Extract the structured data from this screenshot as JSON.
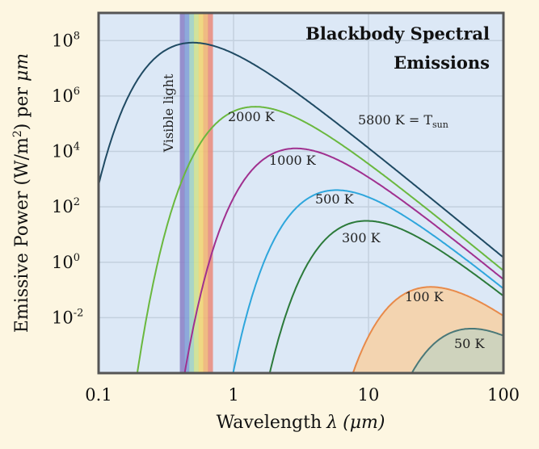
{
  "chart_data": {
    "type": "line",
    "title_line1": "Blackbody Spectral",
    "title_line2": "Emissions",
    "xlabel": "Wavelength",
    "xlabel_symbol": "λ",
    "xlabel_unit": "(μm)",
    "ylabel_part1": "Emissive Power (W/m",
    "ylabel_sup": "2",
    "ylabel_part2": ") per ",
    "ylabel_unit": "μm",
    "x_scale": "log",
    "y_scale": "log",
    "xlim": [
      0.1,
      100
    ],
    "ylim": [
      0.0001,
      1000000000
    ],
    "x_ticks": [
      {
        "value": 0.1,
        "label": "0.1"
      },
      {
        "value": 1,
        "label": "1"
      },
      {
        "value": 10,
        "label": "10"
      },
      {
        "value": 100,
        "label": "100"
      }
    ],
    "y_ticks": [
      {
        "value": 100000000,
        "base": "10",
        "exp": "8"
      },
      {
        "value": 1000000,
        "base": "10",
        "exp": "6"
      },
      {
        "value": 10000,
        "base": "10",
        "exp": "4"
      },
      {
        "value": 100,
        "base": "10",
        "exp": "2"
      },
      {
        "value": 1,
        "base": "10",
        "exp": "0"
      },
      {
        "value": 0.01,
        "base": "10",
        "exp": "-2"
      }
    ],
    "grid": true,
    "visible_band": {
      "label": "Visible light",
      "range": [
        0.4,
        0.7
      ],
      "colors": [
        "#8a7fc6",
        "#7f9ed6",
        "#9fd0c0",
        "#cfe08c",
        "#f2d56e",
        "#f2b36e",
        "#ea8a7a"
      ]
    },
    "series": [
      {
        "temperature": 5800,
        "label": "5800 K = T",
        "label_sub": "sun",
        "color": "#1f4a63",
        "filled": false
      },
      {
        "temperature": 2000,
        "label": "2000 K",
        "color": "#6ab83e",
        "filled": false
      },
      {
        "temperature": 1000,
        "label": "1000 K",
        "color": "#a0308f",
        "filled": false
      },
      {
        "temperature": 500,
        "label": "500 K",
        "color": "#2ea6dc",
        "filled": false
      },
      {
        "temperature": 300,
        "label": "300 K",
        "color": "#2c7a3a",
        "filled": false
      },
      {
        "temperature": 100,
        "label": "100 K",
        "color": "#e88a4a",
        "filled": true,
        "fill": "#f3d4b0"
      },
      {
        "temperature": 50,
        "label": "50 K",
        "color": "#4a7878",
        "filled": true,
        "fill": "#cfd3bd"
      }
    ],
    "colors": {
      "plot_bg": "#dce8f6",
      "page_bg": "#fdf6e1",
      "grid": "#c3d0de",
      "frame": "#555555"
    }
  }
}
